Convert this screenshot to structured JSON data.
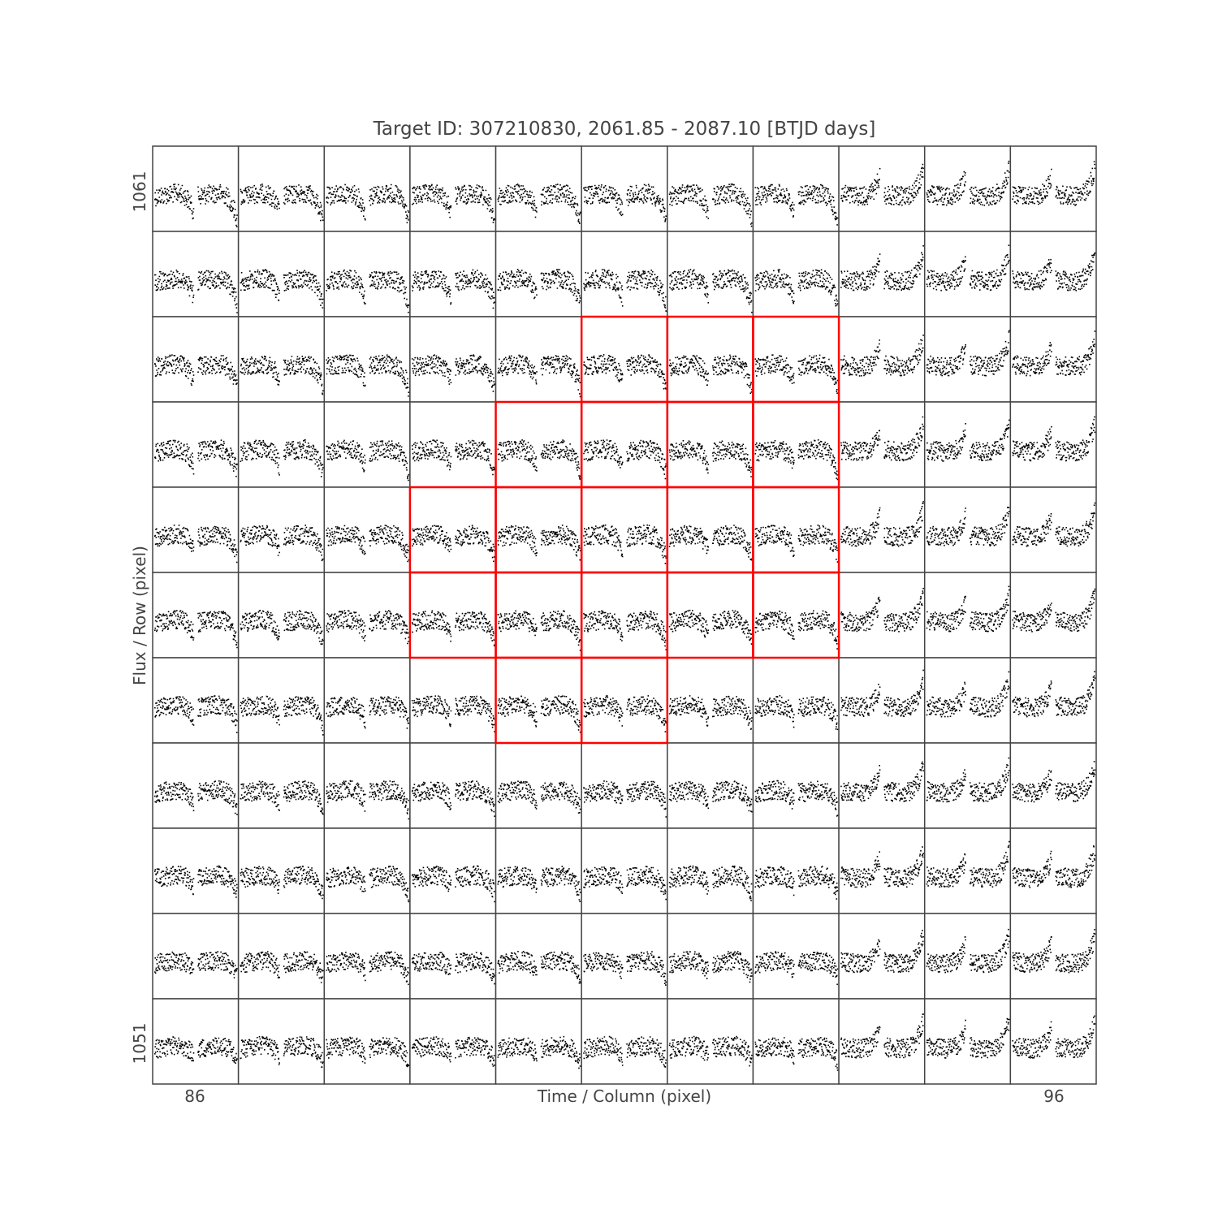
{
  "chart_data": {
    "type": "scatter",
    "title": "Target ID: 307210830, 2061.85 - 2087.10 [BTJD days]",
    "xlabel": "Time / Column (pixel)",
    "ylabel": "Flux / Row (pixel)",
    "column_range": [
      86,
      96
    ],
    "row_range": [
      1051,
      1061
    ],
    "x_tick_labels": [
      "86",
      "96"
    ],
    "y_tick_labels": [
      "1061",
      "1051"
    ],
    "time_range": [
      2061.85,
      2087.1
    ],
    "colors": {
      "points": "#000000",
      "aperture": "#ff0000",
      "frame": "#444444",
      "text": "#444444"
    },
    "aperture_pixels": [
      {
        "column": 91,
        "row": 1059
      },
      {
        "column": 92,
        "row": 1059
      },
      {
        "column": 93,
        "row": 1059
      },
      {
        "column": 90,
        "row": 1058
      },
      {
        "column": 91,
        "row": 1058
      },
      {
        "column": 92,
        "row": 1058
      },
      {
        "column": 93,
        "row": 1058
      },
      {
        "column": 89,
        "row": 1057
      },
      {
        "column": 90,
        "row": 1057
      },
      {
        "column": 91,
        "row": 1057
      },
      {
        "column": 92,
        "row": 1057
      },
      {
        "column": 93,
        "row": 1057
      },
      {
        "column": 89,
        "row": 1056
      },
      {
        "column": 90,
        "row": 1056
      },
      {
        "column": 91,
        "row": 1056
      },
      {
        "column": 92,
        "row": 1056
      },
      {
        "column": 93,
        "row": 1056
      },
      {
        "column": 90,
        "row": 1055
      },
      {
        "column": 91,
        "row": 1055
      }
    ]
  }
}
